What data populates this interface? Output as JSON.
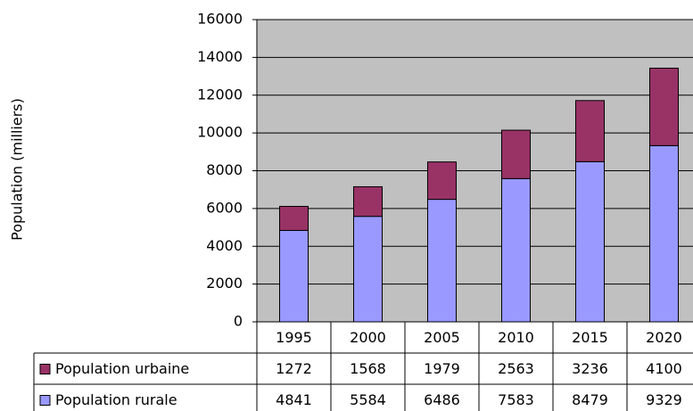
{
  "chart_data": {
    "type": "stacked_bar",
    "y_label": "Population (milliers)",
    "categories": [
      "1995",
      "2000",
      "2005",
      "2010",
      "2015",
      "2020"
    ],
    "series": [
      {
        "name": "Population rurale",
        "color": "#9999ff",
        "values": [
          4841,
          5584,
          6486,
          7583,
          8479,
          9329
        ]
      },
      {
        "name": "Population urbaine",
        "color": "#993366",
        "values": [
          1272,
          1568,
          1979,
          2563,
          3236,
          4100
        ]
      }
    ],
    "ylim": [
      0,
      16000
    ],
    "yticks": [
      0,
      2000,
      4000,
      6000,
      8000,
      10000,
      12000,
      14000,
      16000
    ],
    "grid": true,
    "plot_background": "#c0c0c0"
  }
}
